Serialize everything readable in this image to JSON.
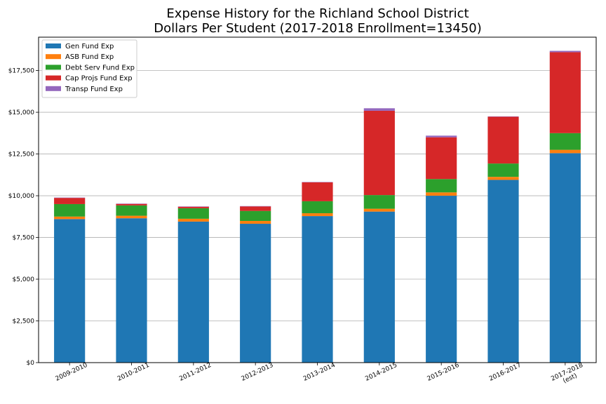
{
  "chart_data": {
    "type": "bar",
    "stacked": true,
    "title_lines": [
      "Expense History for the Richland School District",
      "Dollars Per Student (2017-2018 Enrollment=13450)"
    ],
    "categories": [
      [
        "2009-2010"
      ],
      [
        "2010-2011"
      ],
      [
        "2011-2012"
      ],
      [
        "2012-2013"
      ],
      [
        "2013-2014"
      ],
      [
        "2014-2015"
      ],
      [
        "2015-2016"
      ],
      [
        "2016-2017"
      ],
      [
        "2017-2018",
        "(est)"
      ]
    ],
    "series": [
      {
        "name": "Gen Fund Exp",
        "color": "#1f77b4",
        "values": [
          8600,
          8650,
          8450,
          8320,
          8780,
          9050,
          10000,
          10950,
          12550
        ]
      },
      {
        "name": "ASB Fund Exp",
        "color": "#ff7f0e",
        "values": [
          150,
          150,
          170,
          170,
          170,
          170,
          200,
          180,
          200
        ]
      },
      {
        "name": "Debt Serv Fund Exp",
        "color": "#2ca02c",
        "values": [
          750,
          620,
          630,
          600,
          720,
          820,
          800,
          800,
          1000
        ]
      },
      {
        "name": "Cap Projs Fund Exp",
        "color": "#d62728",
        "values": [
          370,
          90,
          90,
          270,
          1130,
          5050,
          2500,
          2800,
          4850
        ]
      },
      {
        "name": "Transp Fund Exp",
        "color": "#9467bd",
        "values": [
          20,
          20,
          20,
          20,
          20,
          150,
          100,
          20,
          80
        ]
      }
    ],
    "ylim": [
      0,
      19500
    ],
    "yticks": [
      0,
      2500,
      5000,
      7500,
      10000,
      12500,
      15000,
      17500
    ],
    "ytick_labels": [
      "$0",
      "$2,500",
      "$5,000",
      "$7,500",
      "$10,000",
      "$12,500",
      "$15,000",
      "$17,500"
    ],
    "grid": "y",
    "legend": "top-left"
  }
}
